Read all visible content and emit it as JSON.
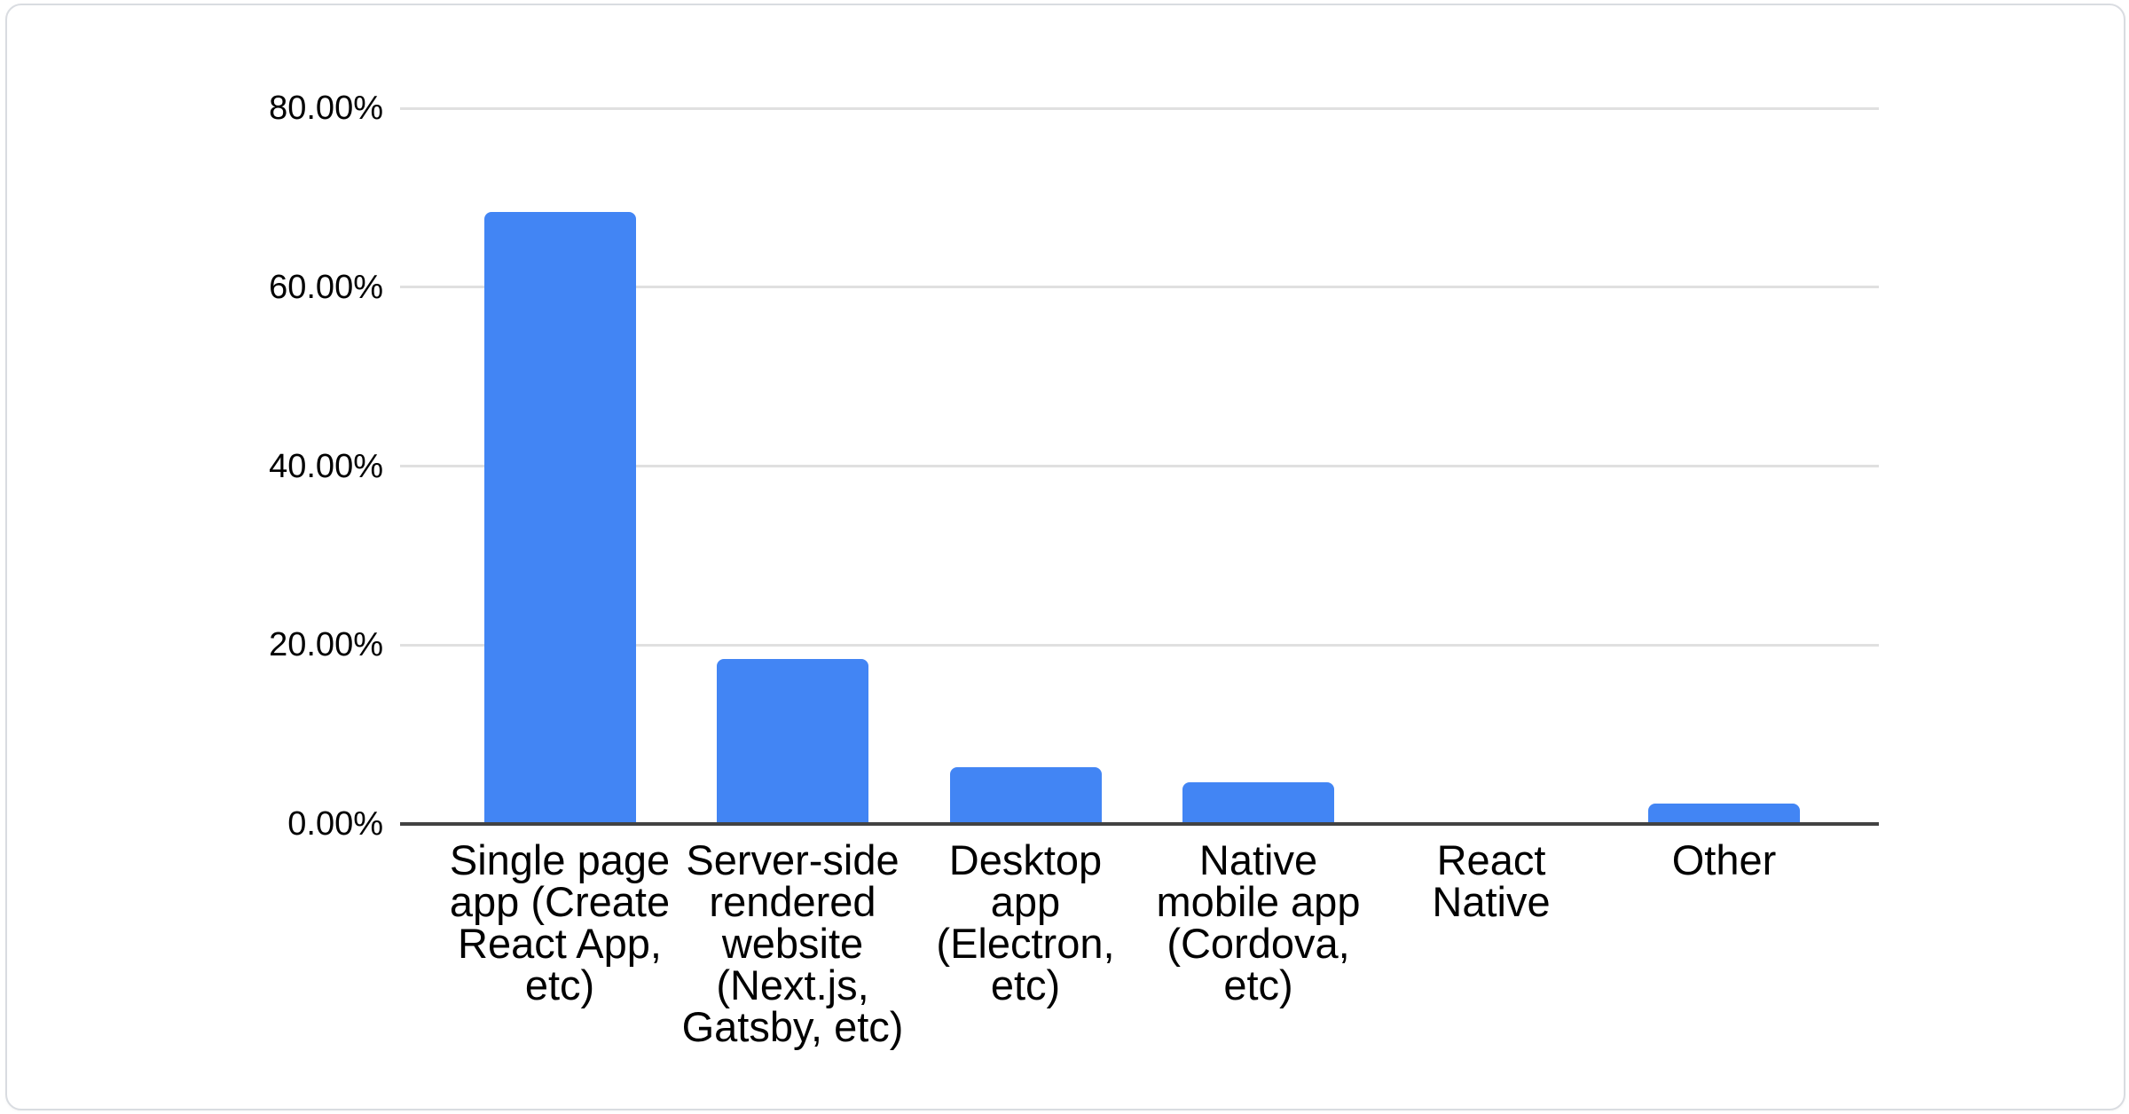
{
  "colors": {
    "bar": "#4285f4",
    "gridline": "#e0e0e0",
    "axis_line": "#424242",
    "label_text": "#000000",
    "card_border": "#d9dce1",
    "background": "#ffffff"
  },
  "chart_data": {
    "type": "bar",
    "categories": [
      "Single page app (Create React App, etc)",
      "Server-side rendered website (Next.js, Gatsby, etc)",
      "Desktop app (Electron, etc)",
      "Native mobile app (Cordova, etc)",
      "React Native",
      "Other"
    ],
    "category_labels_wrapped": [
      "Single page\napp (Create\nReact App,\netc)",
      "Server-side\nrendered\nwebsite\n(Next.js,\nGatsby, etc)",
      "Desktop\napp\n(Electron,\netc)",
      "Native\nmobile app\n(Cordova,\netc)",
      "React\nNative",
      "Other"
    ],
    "values": [
      68.4,
      18.4,
      6.3,
      4.7,
      0,
      2.3
    ],
    "unit": "%",
    "series_color": "#4285f4",
    "ylim": [
      0,
      80
    ],
    "y_ticks": [
      {
        "value": 80,
        "label": "80.00%"
      },
      {
        "value": 60,
        "label": "60.00%"
      },
      {
        "value": 40,
        "label": "40.00%"
      },
      {
        "value": 20,
        "label": "20.00%"
      },
      {
        "value": 0,
        "label": "0.00%"
      }
    ],
    "grid": true,
    "legend": "none",
    "title": ""
  }
}
